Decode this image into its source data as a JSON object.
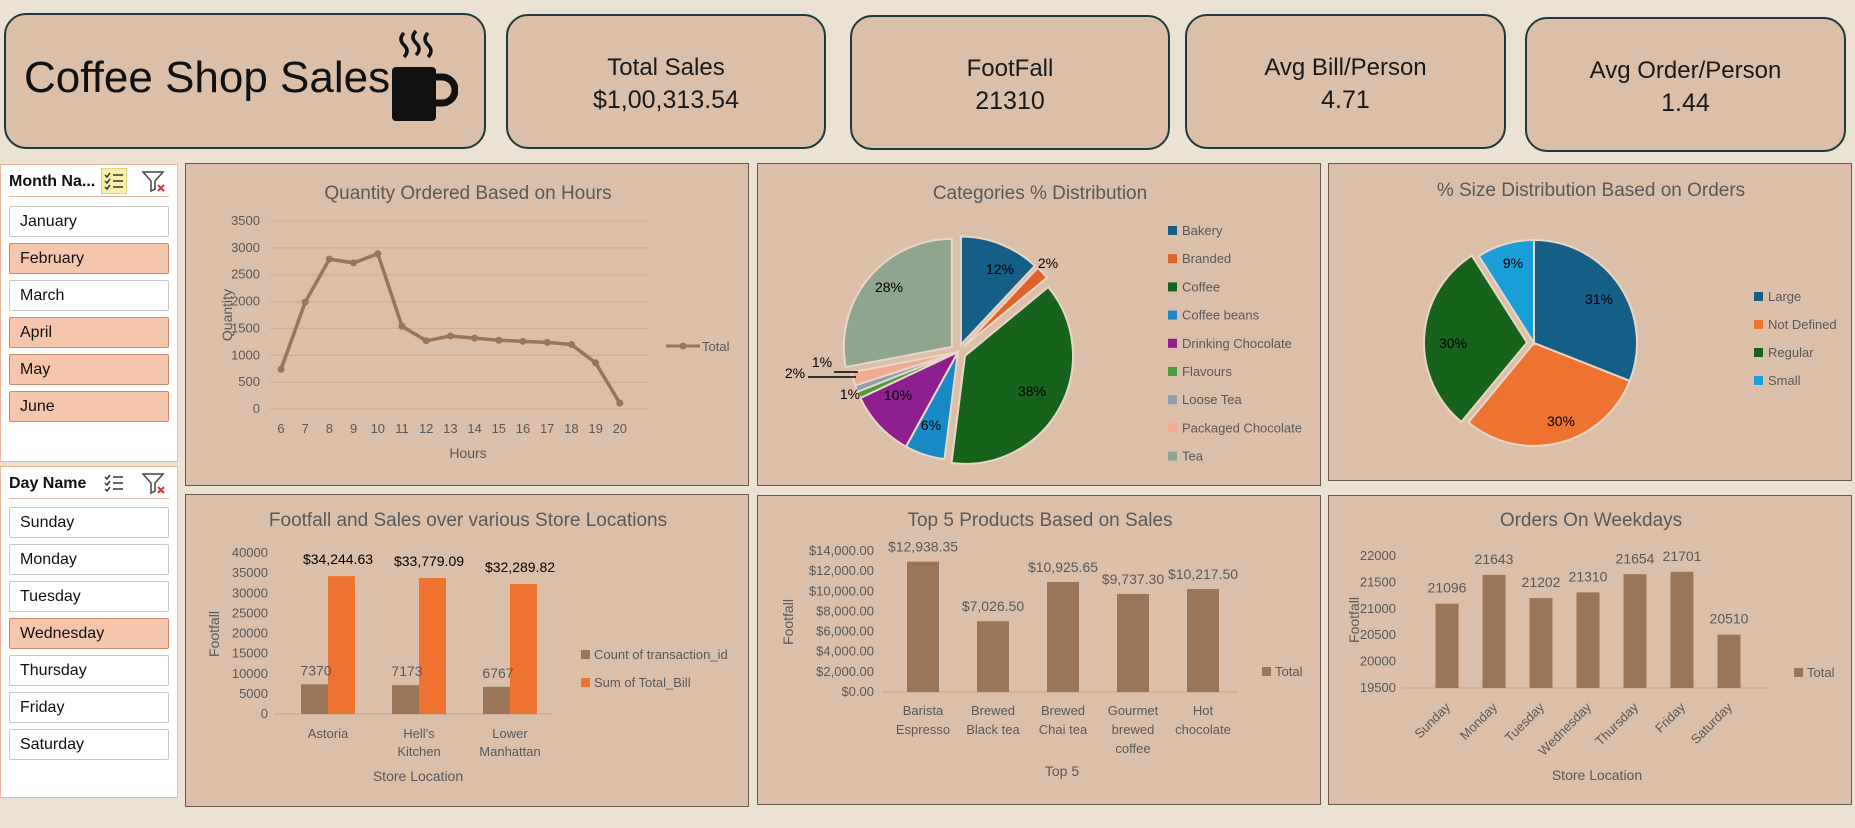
{
  "header": {
    "title": "Coffee Shop Sales",
    "icon": "coffee-cup-icon",
    "kpis": [
      {
        "label": "Total Sales",
        "value": "$1,00,313.54"
      },
      {
        "label": "FootFall",
        "value": "21310"
      },
      {
        "label": "Avg Bill/Person",
        "value": "4.71"
      },
      {
        "label": "Avg Order/Person",
        "value": "1.44"
      }
    ]
  },
  "slicers": {
    "month": {
      "title": "Month Na...",
      "items": [
        {
          "label": "January",
          "selected": false
        },
        {
          "label": "February",
          "selected": true
        },
        {
          "label": "March",
          "selected": false
        },
        {
          "label": "April",
          "selected": true
        },
        {
          "label": "May",
          "selected": true
        },
        {
          "label": "June",
          "selected": true
        }
      ]
    },
    "day": {
      "title": "Day Name",
      "items": [
        {
          "label": "Sunday",
          "selected": false
        },
        {
          "label": "Monday",
          "selected": false
        },
        {
          "label": "Tuesday",
          "selected": false
        },
        {
          "label": "Wednesday",
          "selected": true
        },
        {
          "label": "Thursday",
          "selected": false
        },
        {
          "label": "Friday",
          "selected": false
        },
        {
          "label": "Saturday",
          "selected": false
        }
      ]
    }
  },
  "colors": {
    "brown": "#9b7557",
    "orange": "#ee7330",
    "bakery": "#155e86",
    "branded": "#e0642a",
    "coffee": "#17631c",
    "coffee_beans": "#1889c5",
    "drinking_chocolate": "#8e1f8f",
    "flavours": "#4a9e3a",
    "loose_tea": "#8f9eb4",
    "packaged_chocolate": "#f0aa90",
    "tea": "#8fa58e"
  },
  "chart_data": [
    {
      "type": "line",
      "title": "Quantity Ordered Based on Hours",
      "xlabel": "Hours",
      "ylabel": "Quantity",
      "x": [
        "6",
        "7",
        "8",
        "9",
        "10",
        "11",
        "12",
        "13",
        "14",
        "15",
        "16",
        "17",
        "18",
        "19",
        "20"
      ],
      "series": [
        {
          "name": "Total",
          "values": [
            740,
            1990,
            2790,
            2720,
            2890,
            1540,
            1270,
            1360,
            1320,
            1280,
            1260,
            1240,
            1200,
            860,
            110
          ]
        }
      ],
      "yticks": [
        "0",
        "500",
        "1000",
        "1500",
        "2000",
        "2500",
        "3000",
        "3500"
      ],
      "ylim": [
        0,
        3500
      ],
      "legend": "right"
    },
    {
      "type": "pie",
      "title": "Categories % Distribution",
      "slices": [
        {
          "name": "Bakery",
          "value": 12,
          "label": "12%"
        },
        {
          "name": "Branded",
          "value": 2,
          "label": "2%"
        },
        {
          "name": "Coffee",
          "value": 38,
          "label": "38%"
        },
        {
          "name": "Coffee beans",
          "value": 6,
          "label": "6%"
        },
        {
          "name": "Drinking Chocolate",
          "value": 10,
          "label": "10%"
        },
        {
          "name": "Flavours",
          "value": 1,
          "label": "1%"
        },
        {
          "name": "Loose Tea",
          "value": 1,
          "label": "1%"
        },
        {
          "name": "Packaged Chocolate",
          "value": 2,
          "label": "2%"
        },
        {
          "name": "Tea",
          "value": 28,
          "label": "28%"
        }
      ],
      "legend": "right"
    },
    {
      "type": "pie",
      "title": "% Size Distribution Based on Orders",
      "slices": [
        {
          "name": "Large",
          "value": 31,
          "label": "31%"
        },
        {
          "name": "Not Defined",
          "value": 30,
          "label": "30%"
        },
        {
          "name": "Regular",
          "value": 30,
          "label": "30%"
        },
        {
          "name": "Small",
          "value": 9,
          "label": "9%"
        }
      ],
      "colors": [
        "#155e86",
        "#ee7330",
        "#17631c",
        "#1a9ed8"
      ],
      "legend": "right"
    },
    {
      "type": "bar",
      "title": "Footfall and Sales over various Store Locations",
      "xlabel": "Store Location",
      "ylabel": "Footfall",
      "categories": [
        "Astoria",
        "Hell's Kitchen",
        "Lower Manhattan"
      ],
      "series": [
        {
          "name": "Count of transaction_id",
          "values": [
            7370,
            7173,
            6767
          ],
          "labels": [
            "7370",
            "7173",
            "6767"
          ]
        },
        {
          "name": "Sum of Total_Bill",
          "values": [
            34244.63,
            33779.09,
            32289.82
          ],
          "labels": [
            "$34,244.63",
            "$33,779.09",
            "$32,289.82"
          ]
        }
      ],
      "yticks": [
        "0",
        "5000",
        "10000",
        "15000",
        "20000",
        "25000",
        "30000",
        "35000",
        "40000"
      ],
      "ylim": [
        0,
        40000
      ],
      "legend": "right"
    },
    {
      "type": "bar",
      "title": "Top 5 Products Based on Sales",
      "xlabel": "Top 5",
      "ylabel": "Footfall",
      "categories": [
        "Barista Espresso",
        "Brewed Black tea",
        "Brewed Chai tea",
        "Gourmet brewed coffee",
        "Hot chocolate"
      ],
      "series": [
        {
          "name": "Total",
          "values": [
            12938.35,
            7026.5,
            10925.65,
            9737.3,
            10217.5
          ],
          "labels": [
            "$12,938.35",
            "$7,026.50",
            "$10,925.65",
            "$9,737.30",
            "$10,217.50"
          ]
        }
      ],
      "yticks": [
        "$0.00",
        "$2,000.00",
        "$4,000.00",
        "$6,000.00",
        "$8,000.00",
        "$10,000.00",
        "$12,000.00",
        "$14,000.00"
      ],
      "ylim": [
        0,
        14000
      ],
      "legend": "right"
    },
    {
      "type": "bar",
      "title": "Orders On Weekdays",
      "xlabel": "Store Location",
      "ylabel": "Footfall",
      "categories": [
        "Sunday",
        "Monday",
        "Tuesday",
        "Wednesday",
        "Thursday",
        "Friday",
        "Saturday"
      ],
      "series": [
        {
          "name": "Total",
          "values": [
            21096,
            21643,
            21202,
            21310,
            21654,
            21701,
            20510
          ],
          "labels": [
            "21096",
            "21643",
            "21202",
            "21310",
            "21654",
            "21701",
            "20510"
          ]
        }
      ],
      "yticks": [
        "19500",
        "20000",
        "20500",
        "21000",
        "21500",
        "22000"
      ],
      "ylim": [
        19500,
        22000
      ],
      "legend": "right"
    }
  ]
}
